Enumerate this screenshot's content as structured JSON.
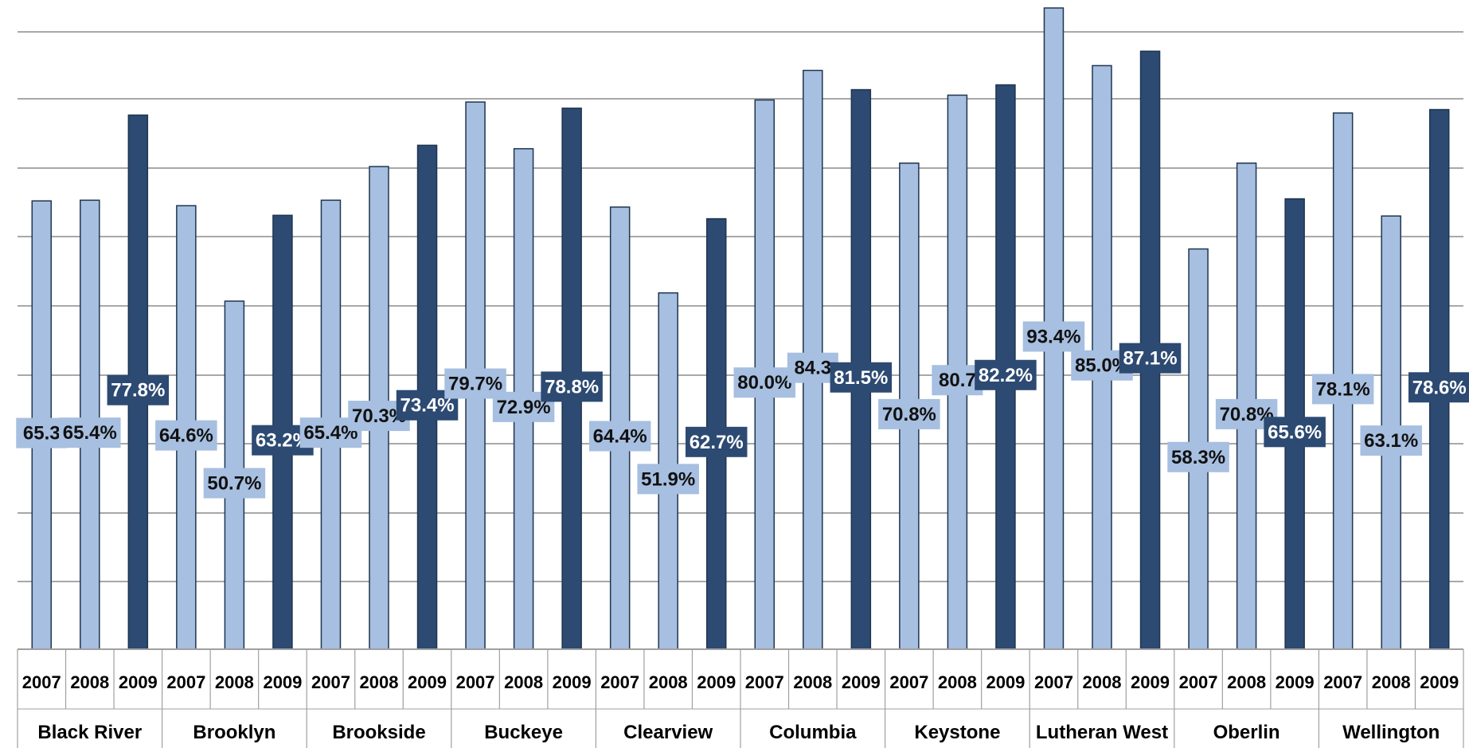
{
  "chart_data": {
    "type": "bar",
    "title": "",
    "xlabel": "",
    "ylabel": "",
    "ylim": [
      0,
      93.4
    ],
    "grid": true,
    "legend": "none",
    "categories": [
      "Black River",
      "Brooklyn",
      "Brookside",
      "Buckeye",
      "Clearview",
      "Columbia",
      "Keystone",
      "Lutheran West",
      "Oberlin",
      "Wellington"
    ],
    "years": [
      "2007",
      "2008",
      "2009"
    ],
    "values": [
      [
        65.3,
        65.4,
        77.8
      ],
      [
        64.6,
        50.7,
        63.2
      ],
      [
        65.4,
        70.3,
        73.4
      ],
      [
        79.7,
        72.9,
        78.8
      ],
      [
        64.4,
        51.9,
        62.7
      ],
      [
        80.0,
        84.3,
        81.5
      ],
      [
        70.8,
        80.7,
        82.2
      ],
      [
        93.4,
        85.0,
        87.1
      ],
      [
        58.3,
        70.8,
        65.6
      ],
      [
        78.1,
        63.1,
        78.6
      ]
    ],
    "value_labels": [
      [
        "65.3",
        "65.4%",
        "77.8%"
      ],
      [
        "64.6%",
        "50.7%",
        "63.2%"
      ],
      [
        "65.4%",
        "70.3%",
        "73.4%"
      ],
      [
        "79.7%",
        "72.9%",
        "78.8%"
      ],
      [
        "64.4%",
        "51.9%",
        "62.7%"
      ],
      [
        "80.0%",
        "84.3",
        "81.5%"
      ],
      [
        "70.8%",
        "80.7",
        "82.2%"
      ],
      [
        "93.4%",
        "85.0%",
        "87.1%"
      ],
      [
        "58.3%",
        "70.8%",
        "65.6%"
      ],
      [
        "78.1%",
        "63.1%",
        "78.6%"
      ]
    ],
    "colors": {
      "light": "#a7bfe0",
      "dark": "#2c4a72",
      "bar_border": "#1f3550",
      "grid": "#8c8c8c",
      "table_border": "#a0a0a0"
    }
  }
}
